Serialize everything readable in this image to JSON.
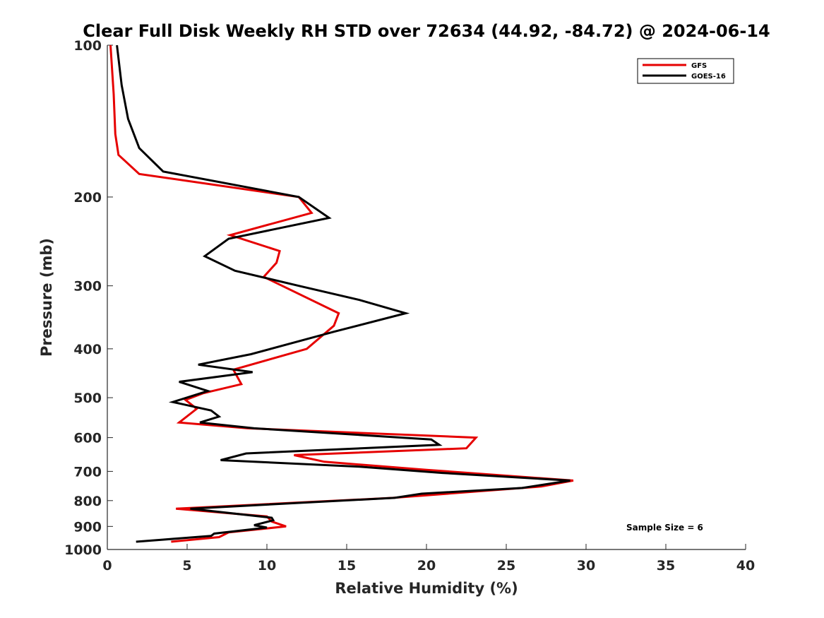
{
  "chart_data": {
    "type": "line",
    "title": "Clear Full Disk Weekly RH STD over 72634 (44.92, -84.72) @ 2024-06-14",
    "xlabel": "Relative Humidity (%)",
    "ylabel": "Pressure (mb)",
    "xlim": [
      0,
      40
    ],
    "ylim": [
      100,
      1000
    ],
    "y_scale": "log",
    "y_reversed": true,
    "x_ticks": [
      "0",
      "5",
      "10",
      "15",
      "20",
      "25",
      "30",
      "35",
      "40"
    ],
    "y_ticks": [
      "100",
      "200",
      "300",
      "400",
      "500",
      "600",
      "700",
      "800",
      "900",
      "1000"
    ],
    "legend_position": "top-right",
    "annotation": "Sample Size = 6",
    "series": [
      {
        "name": "GFS",
        "color": "#e60000",
        "points": [
          [
            0.2,
            100
          ],
          [
            0.4,
            125
          ],
          [
            0.5,
            150
          ],
          [
            0.7,
            165
          ],
          [
            2.0,
            180
          ],
          [
            12.0,
            200
          ],
          [
            12.8,
            215
          ],
          [
            7.7,
            238
          ],
          [
            10.8,
            256
          ],
          [
            10.6,
            270
          ],
          [
            9.8,
            288
          ],
          [
            14.5,
            340
          ],
          [
            14.2,
            360
          ],
          [
            12.5,
            400
          ],
          [
            7.9,
            440
          ],
          [
            8.4,
            470
          ],
          [
            6.0,
            490
          ],
          [
            4.9,
            505
          ],
          [
            5.6,
            526
          ],
          [
            4.5,
            560
          ],
          [
            8.8,
            575
          ],
          [
            23.1,
            600
          ],
          [
            22.5,
            630
          ],
          [
            11.7,
            650
          ],
          [
            13.6,
            670
          ],
          [
            20.0,
            695
          ],
          [
            29.2,
            730
          ],
          [
            27.2,
            750
          ],
          [
            17.9,
            790
          ],
          [
            4.3,
            830
          ],
          [
            10.0,
            860
          ],
          [
            10.3,
            880
          ],
          [
            11.2,
            900
          ],
          [
            7.6,
            925
          ],
          [
            7.0,
            945
          ],
          [
            4.0,
            965
          ]
        ]
      },
      {
        "name": "GOES-16",
        "color": "#000000",
        "points": [
          [
            0.6,
            100
          ],
          [
            0.9,
            120
          ],
          [
            1.3,
            140
          ],
          [
            2.0,
            160
          ],
          [
            3.5,
            178
          ],
          [
            12.0,
            200
          ],
          [
            13.9,
            220
          ],
          [
            7.6,
            242
          ],
          [
            6.1,
            262
          ],
          [
            8.0,
            280
          ],
          [
            12.0,
            300
          ],
          [
            15.8,
            320
          ],
          [
            18.7,
            340
          ],
          [
            14.2,
            370
          ],
          [
            9.0,
            410
          ],
          [
            5.7,
            430
          ],
          [
            9.1,
            445
          ],
          [
            4.5,
            465
          ],
          [
            6.3,
            485
          ],
          [
            4.1,
            510
          ],
          [
            6.5,
            530
          ],
          [
            7.0,
            545
          ],
          [
            5.8,
            560
          ],
          [
            9.2,
            575
          ],
          [
            20.3,
            605
          ],
          [
            20.8,
            620
          ],
          [
            8.7,
            645
          ],
          [
            7.1,
            665
          ],
          [
            15.8,
            685
          ],
          [
            21.0,
            705
          ],
          [
            29.0,
            730
          ],
          [
            26.0,
            755
          ],
          [
            19.7,
            775
          ],
          [
            18.0,
            790
          ],
          [
            5.2,
            830
          ],
          [
            10.3,
            865
          ],
          [
            10.4,
            875
          ],
          [
            9.2,
            895
          ],
          [
            10.0,
            905
          ],
          [
            6.7,
            930
          ],
          [
            6.5,
            940
          ],
          [
            1.8,
            965
          ]
        ]
      }
    ]
  }
}
